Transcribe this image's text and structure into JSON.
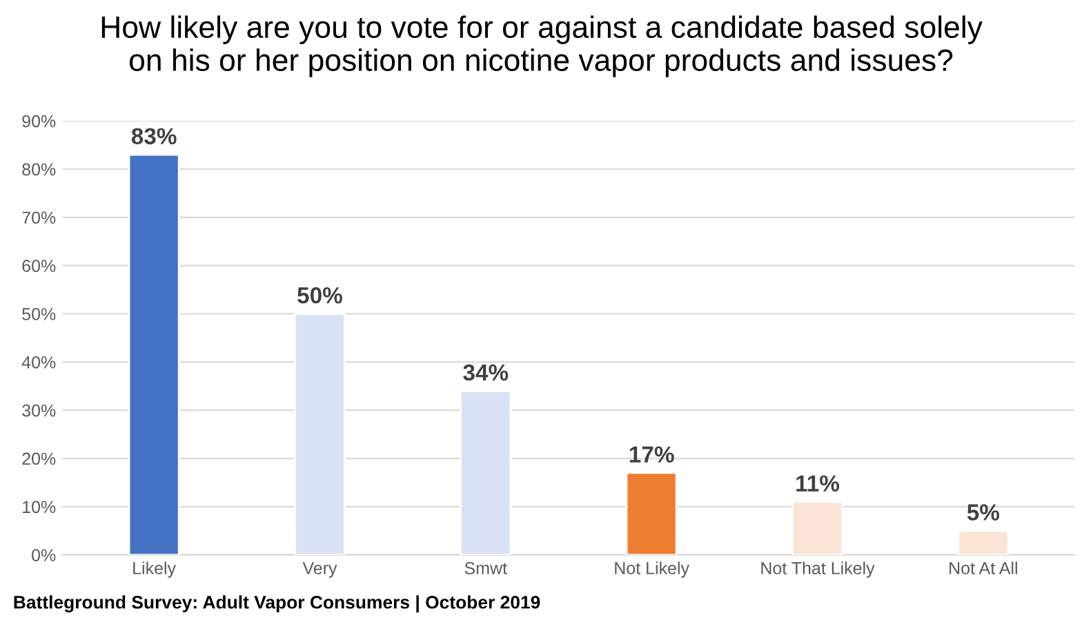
{
  "chart_data": {
    "type": "bar",
    "title": "How likely are you to vote for or against a candidate based solely\non his or her position on nicotine vapor products and issues?",
    "categories": [
      "Likely",
      "Very",
      "Smwt",
      "Not Likely",
      "Not That Likely",
      "Not At All"
    ],
    "values": [
      83,
      50,
      34,
      17,
      11,
      5
    ],
    "colors": [
      "#4472c4",
      "#d9e1f4",
      "#d9e1f4",
      "#ed7d31",
      "#fbe3d5",
      "#fbe3d5"
    ],
    "value_labels": [
      "83%",
      "50%",
      "34%",
      "17%",
      "11%",
      "5%"
    ],
    "ylim": [
      0,
      90
    ],
    "yticks": [
      {
        "value": 0,
        "label": "0%"
      },
      {
        "value": 10,
        "label": "10%"
      },
      {
        "value": 20,
        "label": "20%"
      },
      {
        "value": 30,
        "label": "30%"
      },
      {
        "value": 40,
        "label": "40%"
      },
      {
        "value": 50,
        "label": "50%"
      },
      {
        "value": 60,
        "label": "60%"
      },
      {
        "value": 70,
        "label": "70%"
      },
      {
        "value": 80,
        "label": "80%"
      },
      {
        "value": 90,
        "label": "90%"
      }
    ],
    "grid": "y",
    "annotations": [
      "Battleground Survey: Adult Vapor Consumers | October 2019"
    ]
  }
}
